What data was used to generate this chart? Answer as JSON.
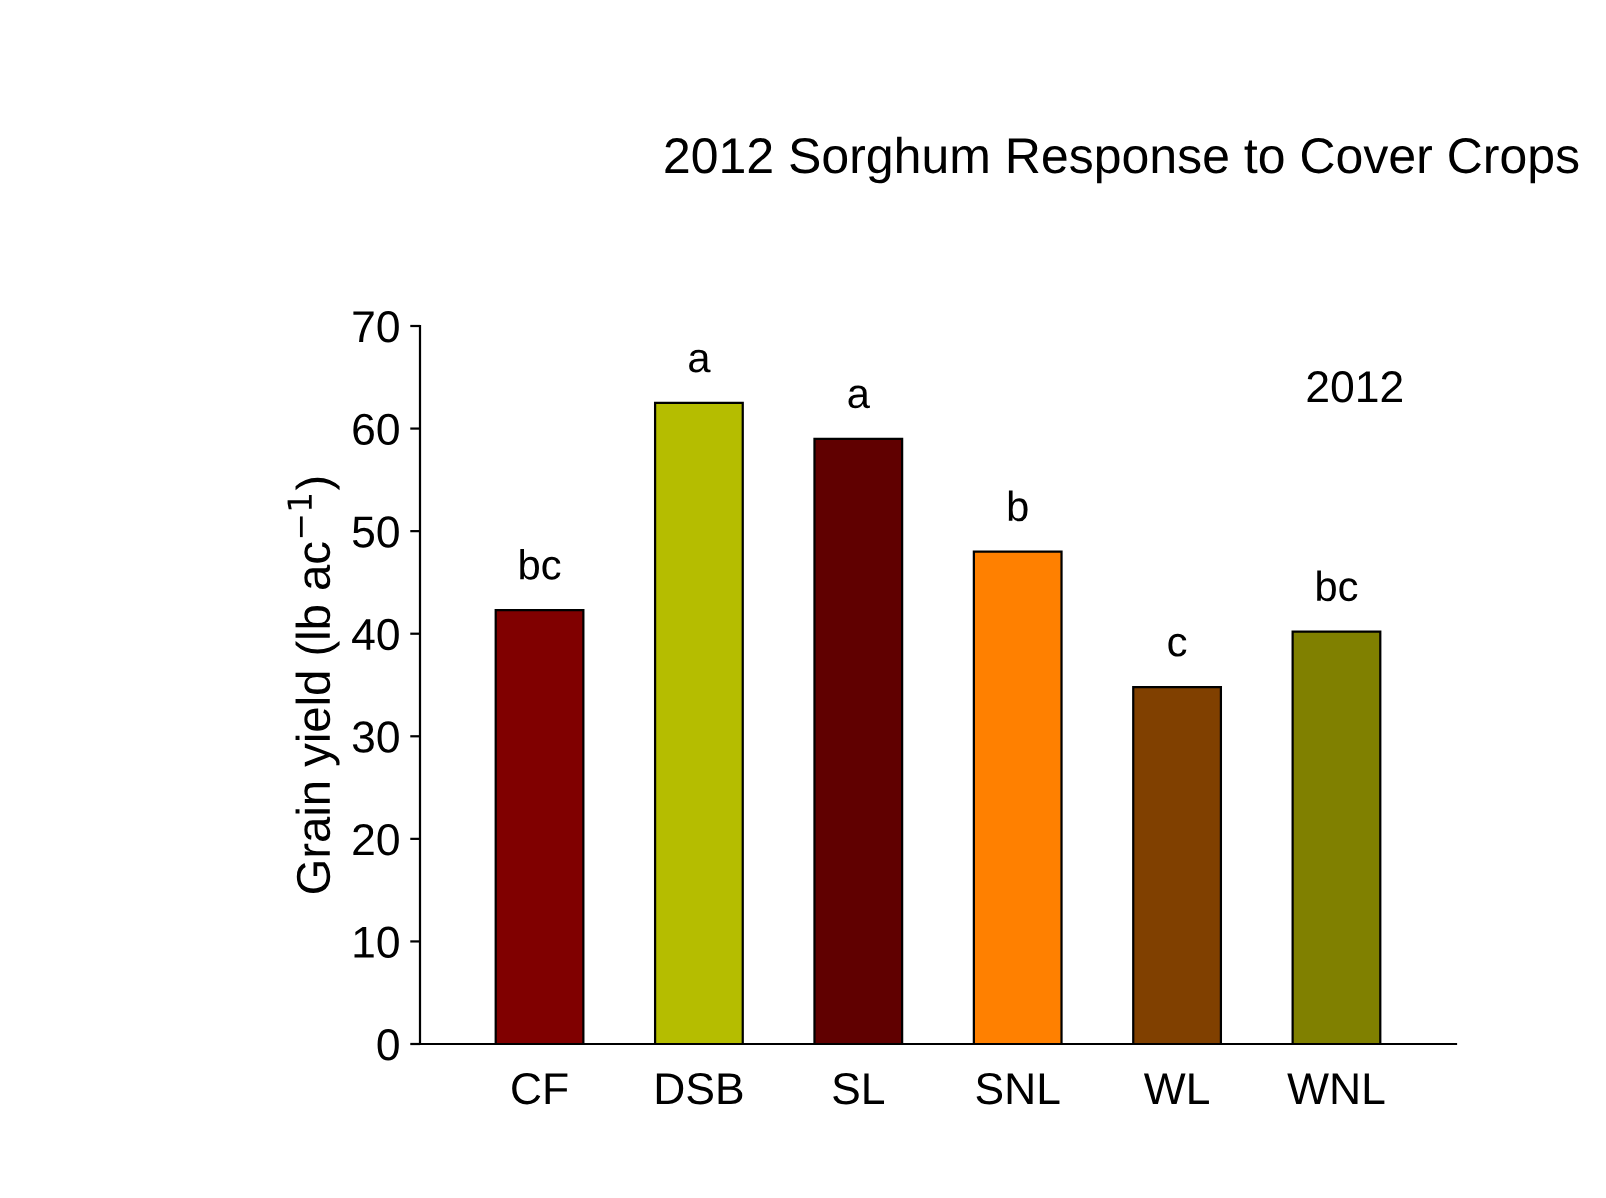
{
  "chart_data": {
    "type": "bar",
    "title": "2012 Sorghum Response to Cover Crops",
    "ylabel": "Grain yield (lb ac$^{−1}$)",
    "categories": [
      "CF",
      "DSB",
      "SL",
      "SNL",
      "WL",
      "WNL"
    ],
    "values": [
      42.3,
      62.5,
      59.0,
      48.0,
      34.8,
      40.2
    ],
    "colors": [
      "#800000",
      "#b5bd00",
      "#600000",
      "#ff8000",
      "#804000",
      "#808000"
    ],
    "ylim": [
      0,
      70
    ],
    "yticks": [
      0,
      10,
      20,
      30,
      40,
      50,
      60,
      70
    ],
    "grid": false,
    "legend": false,
    "annotations": [
      {
        "text": "bc",
        "x": "CF",
        "y": 42.3
      },
      {
        "text": "a",
        "x": "DSB",
        "y": 62.5
      },
      {
        "text": "a",
        "x": "SL",
        "y": 59.0
      },
      {
        "text": "b",
        "x": "SNL",
        "y": 48.0
      },
      {
        "text": "c",
        "x": "WL",
        "y": 34.8
      },
      {
        "text": "bc",
        "x": "WNL",
        "y": 40.2
      },
      "2012"
    ]
  }
}
